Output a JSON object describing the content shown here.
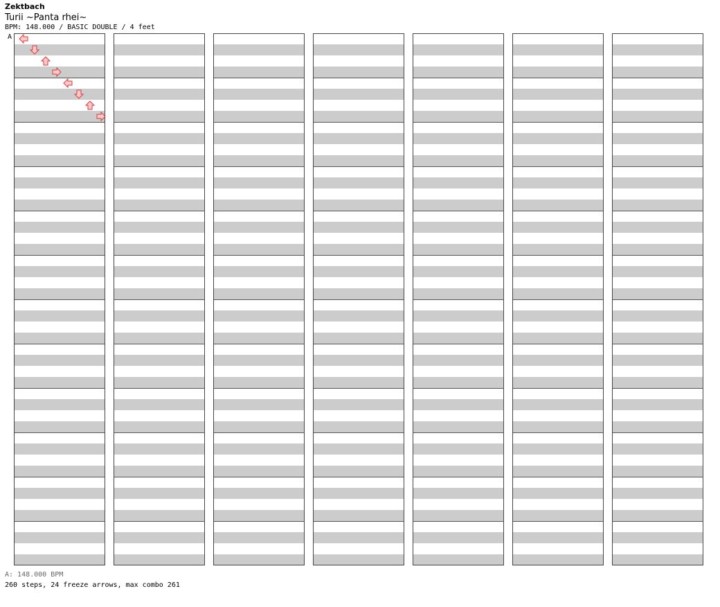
{
  "header": {
    "artist": "Zektbach",
    "title": "Turii ~Panta rhei~",
    "info": "BPM: 148.000 / BASIC DOUBLE / 4 feet"
  },
  "bpm_marker": {
    "label": "A"
  },
  "footer": {
    "bpm": "A: 148.000 BPM",
    "stats": "260 steps, 24 freeze arrows, max combo 261"
  },
  "colors": {
    "stripe": "#cccccc",
    "note_red_fill": "#ffc8c8",
    "note_red_stroke": "#d04040",
    "note_blue_fill": "#88c4ff",
    "note_blue_stroke": "#3070c0",
    "freeze_fill": "#ccffcc",
    "freeze_stroke": "#3a8a3a"
  },
  "chart_data": {
    "type": "step-chart",
    "mode": "BASIC DOUBLE",
    "lanes": [
      "P1-left",
      "P1-down",
      "P1-up",
      "P1-right",
      "P2-left",
      "P2-down",
      "P2-up",
      "P2-right"
    ],
    "columns": 7,
    "measures_per_column": 12,
    "beats_per_measure": 4,
    "notes_note": "Positions are [measure, beat, lane]; measure 1-84 top-to-bottom then column by column; beat in quarter notes 0-3.5 (x.5 = eighth).",
    "notes": [
      [
        1,
        0,
        0
      ],
      [
        1,
        1,
        1
      ],
      [
        1,
        2,
        2
      ],
      [
        1,
        3,
        3
      ],
      [
        2,
        0,
        4
      ],
      [
        2,
        1,
        5
      ],
      [
        2,
        2,
        6
      ],
      [
        2,
        3,
        7
      ]
    ]
  }
}
